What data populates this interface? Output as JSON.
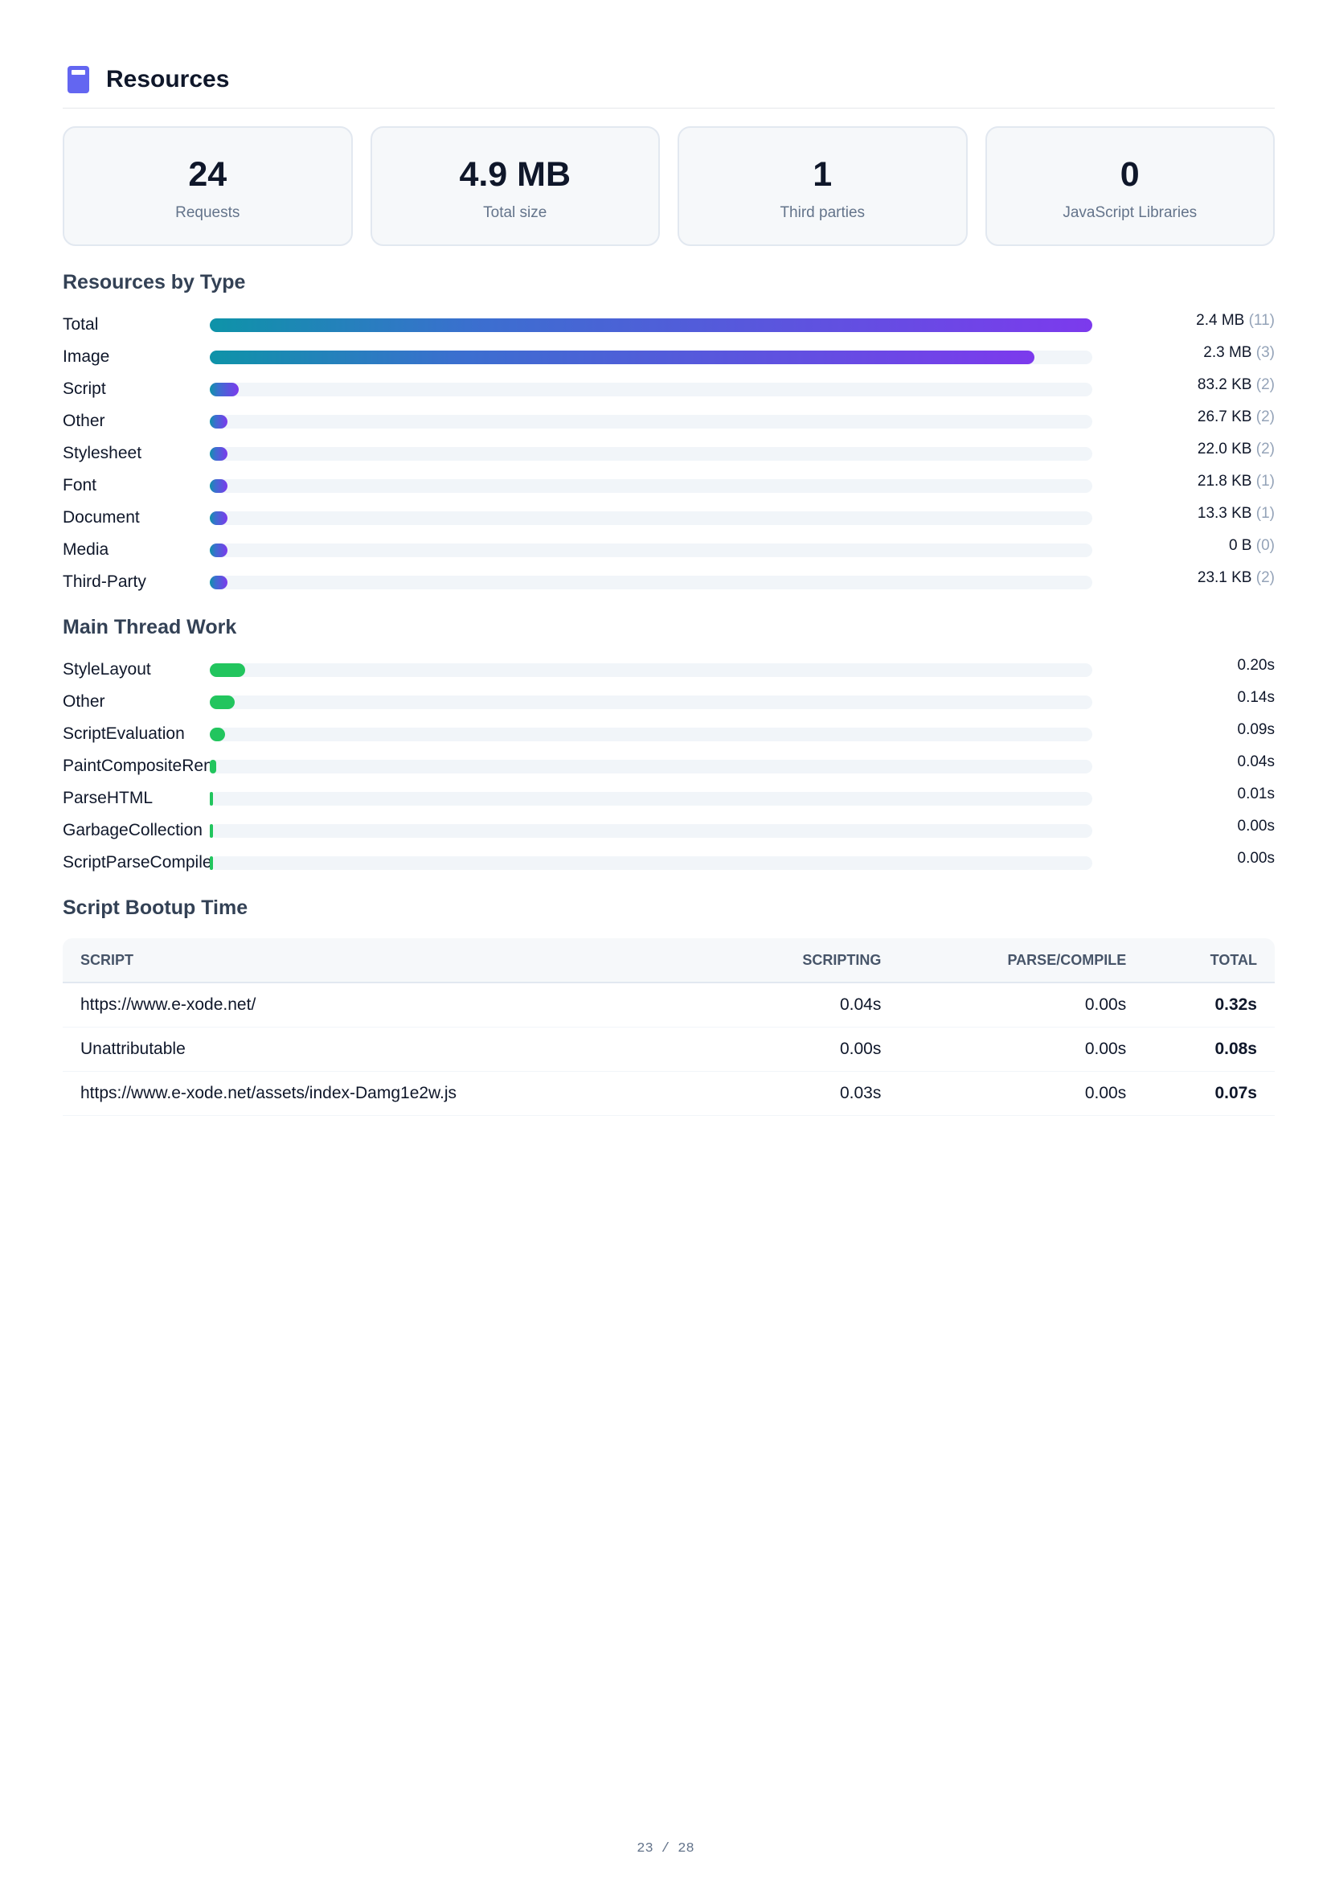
{
  "header": {
    "title": "Resources"
  },
  "summary": [
    {
      "value": 24,
      "label": "Requests"
    },
    {
      "value": "4.9 MB",
      "label": "Total size"
    },
    {
      "value": 1,
      "label": "Third parties"
    },
    {
      "value": 0,
      "label": "JavaScript Libraries"
    }
  ],
  "resources_by_type": {
    "title": "Resources by Type",
    "rows": [
      {
        "label": "Total",
        "size": "2.4 MB",
        "count": "(11)",
        "share": 100
      },
      {
        "label": "Image",
        "size": "2.3 MB",
        "count": "(3)",
        "share": 93.4
      },
      {
        "label": "Script",
        "size": "83.2 KB",
        "count": "(2)",
        "share": 3.3
      },
      {
        "label": "Other",
        "size": "26.7 KB",
        "count": "(2)",
        "share": 1.1
      },
      {
        "label": "Stylesheet",
        "size": "22.0 KB",
        "count": "(2)",
        "share": 0.9
      },
      {
        "label": "Font",
        "size": "21.8 KB",
        "count": "(1)",
        "share": 0.9
      },
      {
        "label": "Document",
        "size": "13.3 KB",
        "count": "(1)",
        "share": 0.5
      },
      {
        "label": "Media",
        "size": "0 B",
        "count": "(0)",
        "share": 0
      },
      {
        "label": "Third-Party",
        "size": "23.1 KB",
        "count": "(2)",
        "share": 0.9
      }
    ]
  },
  "main_thread_work": {
    "title": "Main Thread Work",
    "rows": [
      {
        "label": "StyleLayout",
        "time": "0.20s",
        "share": 4
      },
      {
        "label": "Other",
        "time": "0.14s",
        "share": 2.8
      },
      {
        "label": "ScriptEvaluation",
        "time": "0.09s",
        "share": 1.7
      },
      {
        "label": "PaintCompositeRender",
        "time": "0.04s",
        "share": 0.7
      },
      {
        "label": "ParseHTML",
        "time": "0.01s",
        "share": 0.2
      },
      {
        "label": "GarbageCollection",
        "time": "0.00s",
        "share": 0.1
      },
      {
        "label": "ScriptParseCompile",
        "time": "0.00s",
        "share": 0.1
      }
    ]
  },
  "script_bootup": {
    "title": "Script Bootup Time",
    "columns": [
      "SCRIPT",
      "SCRIPTING",
      "PARSE/COMPILE",
      "TOTAL"
    ],
    "rows": [
      [
        "https://www.e-xode.net/",
        "0.04s",
        "0.00s",
        "0.32s"
      ],
      [
        "Unattributable",
        "0.00s",
        "0.00s",
        "0.08s"
      ],
      [
        "https://www.e-xode.net/assets/index-Damg1e2w.js",
        "0.03s",
        "0.00s",
        "0.07s"
      ]
    ]
  },
  "footer": {
    "page": "23 / 28"
  }
}
